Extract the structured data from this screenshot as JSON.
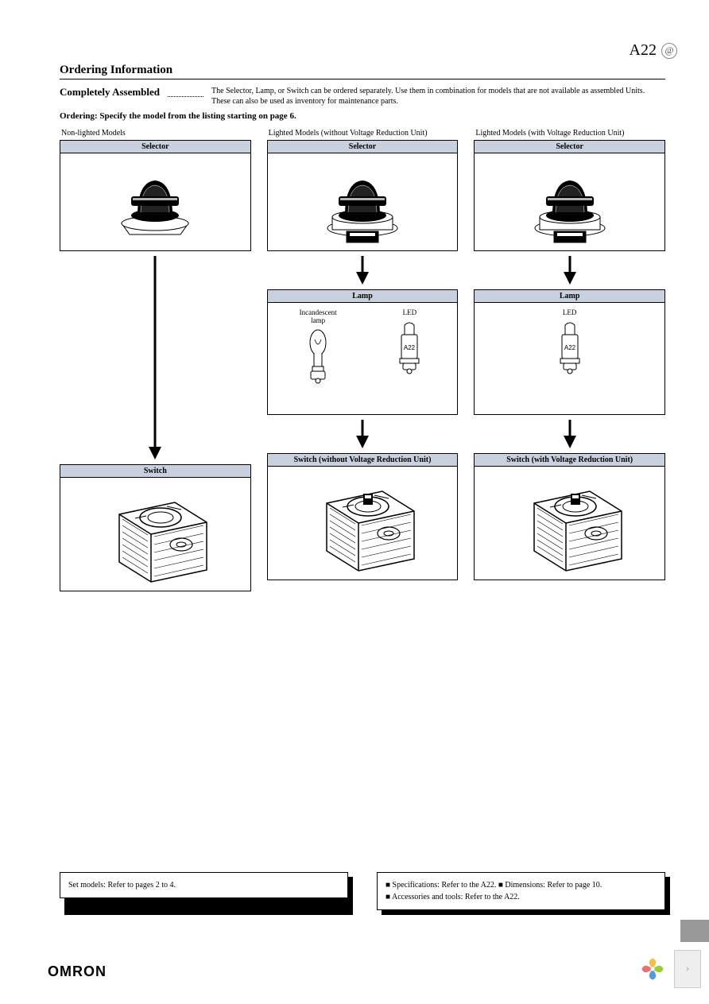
{
  "header": {
    "code": "A22",
    "symbol": "@"
  },
  "section_title": "Ordering Information",
  "subhead": "Completely Assembled",
  "subhead_text": "The Selector, Lamp, or Switch can be ordered separately. Use them in combination for models that are not available as assembled Units. These can also be used as inventory for maintenance parts.",
  "ordering_note": "Ordering: Specify the model from the listing starting on page 6.",
  "columns": [
    {
      "heading": "Non-lighted Models",
      "selector_title": "Selector",
      "lamp": null,
      "switch_title": "Switch"
    },
    {
      "heading": "Lighted Models (without Voltage Reduction Unit)",
      "selector_title": "Selector",
      "lamp": {
        "title": "Lamp",
        "items": [
          {
            "label": "Incandescent lamp",
            "type": "incandescent"
          },
          {
            "label": "LED",
            "type": "led",
            "mark": "A22"
          }
        ]
      },
      "switch_title": "Switch (without Voltage Reduction Unit)"
    },
    {
      "heading": "Lighted Models (with Voltage Reduction Unit)",
      "selector_title": "Selector",
      "lamp": {
        "title": "Lamp",
        "items": [
          {
            "label": "LED",
            "type": "led",
            "mark": "A22"
          }
        ]
      },
      "switch_title": "Switch (with Voltage Reduction Unit)"
    }
  ],
  "footer_boxes": {
    "left": "Set models: Refer to pages 2 to 4.",
    "right_lines": [
      "■ Specifications: Refer to the A22. ■ Dimensions: Refer to page 10.",
      "■ Accessories and tools: Refer to the A22."
    ]
  },
  "brand": "OMRON",
  "colors": {
    "header_bg": "#c9d0de",
    "border": "#000000",
    "nav_bg": "#eeeeee"
  },
  "long_arrow_height": 400,
  "short_arrow_height": 36,
  "selector_svg_lighted": false
}
